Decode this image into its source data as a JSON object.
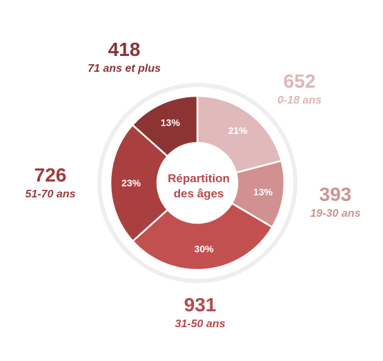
{
  "chart_data": {
    "type": "pie",
    "variant": "donut",
    "title": "Répartition des âges",
    "center_label_lines": [
      "Répartition",
      "des âges"
    ],
    "slices": [
      {
        "label": "0-18 ans",
        "value": 652,
        "percent_label": "21%",
        "color": "#e0b9ba",
        "text_color": "#deb5b6"
      },
      {
        "label": "19-30 ans",
        "value": 393,
        "percent_label": "13%",
        "color": "#d19190",
        "text_color": "#cf9294"
      },
      {
        "label": "31-50 ans",
        "value": 931,
        "percent_label": "30%",
        "color": "#c2504f",
        "text_color": "#b9474a"
      },
      {
        "label": "51-70 ans",
        "value": 726,
        "percent_label": "23%",
        "color": "#a9403f",
        "text_color": "#9f3a3c"
      },
      {
        "label": "71 ans et plus",
        "value": 418,
        "percent_label": "13%",
        "color": "#8c3434",
        "text_color": "#8a3234"
      }
    ],
    "ring_color": "#eeeeee",
    "separator_color": "#ffffff"
  }
}
